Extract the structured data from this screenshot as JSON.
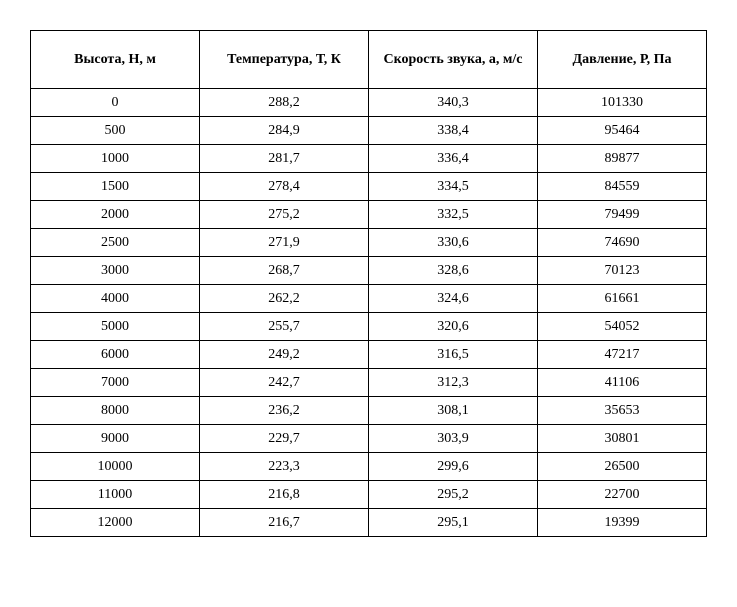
{
  "table": {
    "columns": [
      "Высота, Н, м",
      "Температура, Т, К",
      "Скорость звука, а, м/с",
      "Давление, Р, Па"
    ],
    "rows": [
      [
        "0",
        "288,2",
        "340,3",
        "101330"
      ],
      [
        "500",
        "284,9",
        "338,4",
        "95464"
      ],
      [
        "1000",
        "281,7",
        "336,4",
        "89877"
      ],
      [
        "1500",
        "278,4",
        "334,5",
        "84559"
      ],
      [
        "2000",
        "275,2",
        "332,5",
        "79499"
      ],
      [
        "2500",
        "271,9",
        "330,6",
        "74690"
      ],
      [
        "3000",
        "268,7",
        "328,6",
        "70123"
      ],
      [
        "4000",
        "262,2",
        "324,6",
        "61661"
      ],
      [
        "5000",
        "255,7",
        "320,6",
        "54052"
      ],
      [
        "6000",
        "249,2",
        "316,5",
        "47217"
      ],
      [
        "7000",
        "242,7",
        "312,3",
        "41106"
      ],
      [
        "8000",
        "236,2",
        "308,1",
        "35653"
      ],
      [
        "9000",
        "229,7",
        "303,9",
        "30801"
      ],
      [
        "10000",
        "223,3",
        "299,6",
        "26500"
      ],
      [
        "11000",
        "216,8",
        "295,2",
        "22700"
      ],
      [
        "12000",
        "216,7",
        "295,1",
        "19399"
      ]
    ],
    "border_color": "#000000",
    "background_color": "#ffffff",
    "text_color": "#000000",
    "header_fontsize": 14,
    "cell_fontsize": 14,
    "font_family": "Times New Roman"
  }
}
